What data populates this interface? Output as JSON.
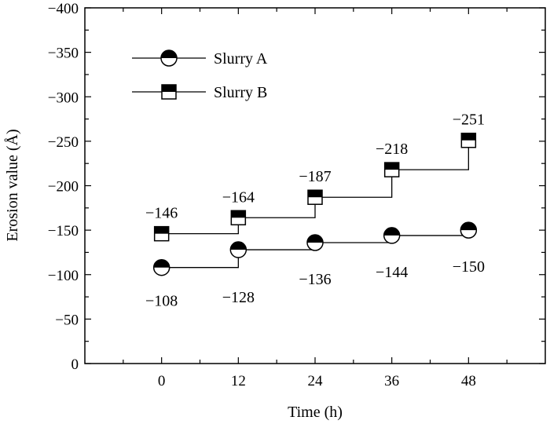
{
  "chart_data": {
    "type": "line",
    "step": "post",
    "xlabel": "Time (h)",
    "ylabel": "Erosion value (Å)",
    "x": [
      0,
      12,
      24,
      36,
      48
    ],
    "x_ticks": [
      "0",
      "12",
      "24",
      "36",
      "48"
    ],
    "xlim": [
      -12,
      60
    ],
    "ylim": [
      0,
      -400
    ],
    "y_ticks": [
      0,
      -50,
      -100,
      -150,
      -200,
      -250,
      -300,
      -350,
      -400
    ],
    "y_tick_labels": [
      "0",
      "−50",
      "−100",
      "−150",
      "−200",
      "−250",
      "−300",
      "−350",
      "−400"
    ],
    "grid": false,
    "legend_position": "top-left",
    "series": [
      {
        "name": "Slurry A",
        "marker": "half-filled-circle",
        "values": [
          -108,
          -128,
          -136,
          -144,
          -150
        ],
        "labels": [
          "−108",
          "−128",
          "−136",
          "−144",
          "−150"
        ]
      },
      {
        "name": "Slurry B",
        "marker": "half-filled-square",
        "values": [
          -146,
          -164,
          -187,
          -218,
          -251
        ],
        "labels": [
          "−146",
          "−164",
          "−187",
          "−218",
          "−251"
        ]
      }
    ]
  }
}
